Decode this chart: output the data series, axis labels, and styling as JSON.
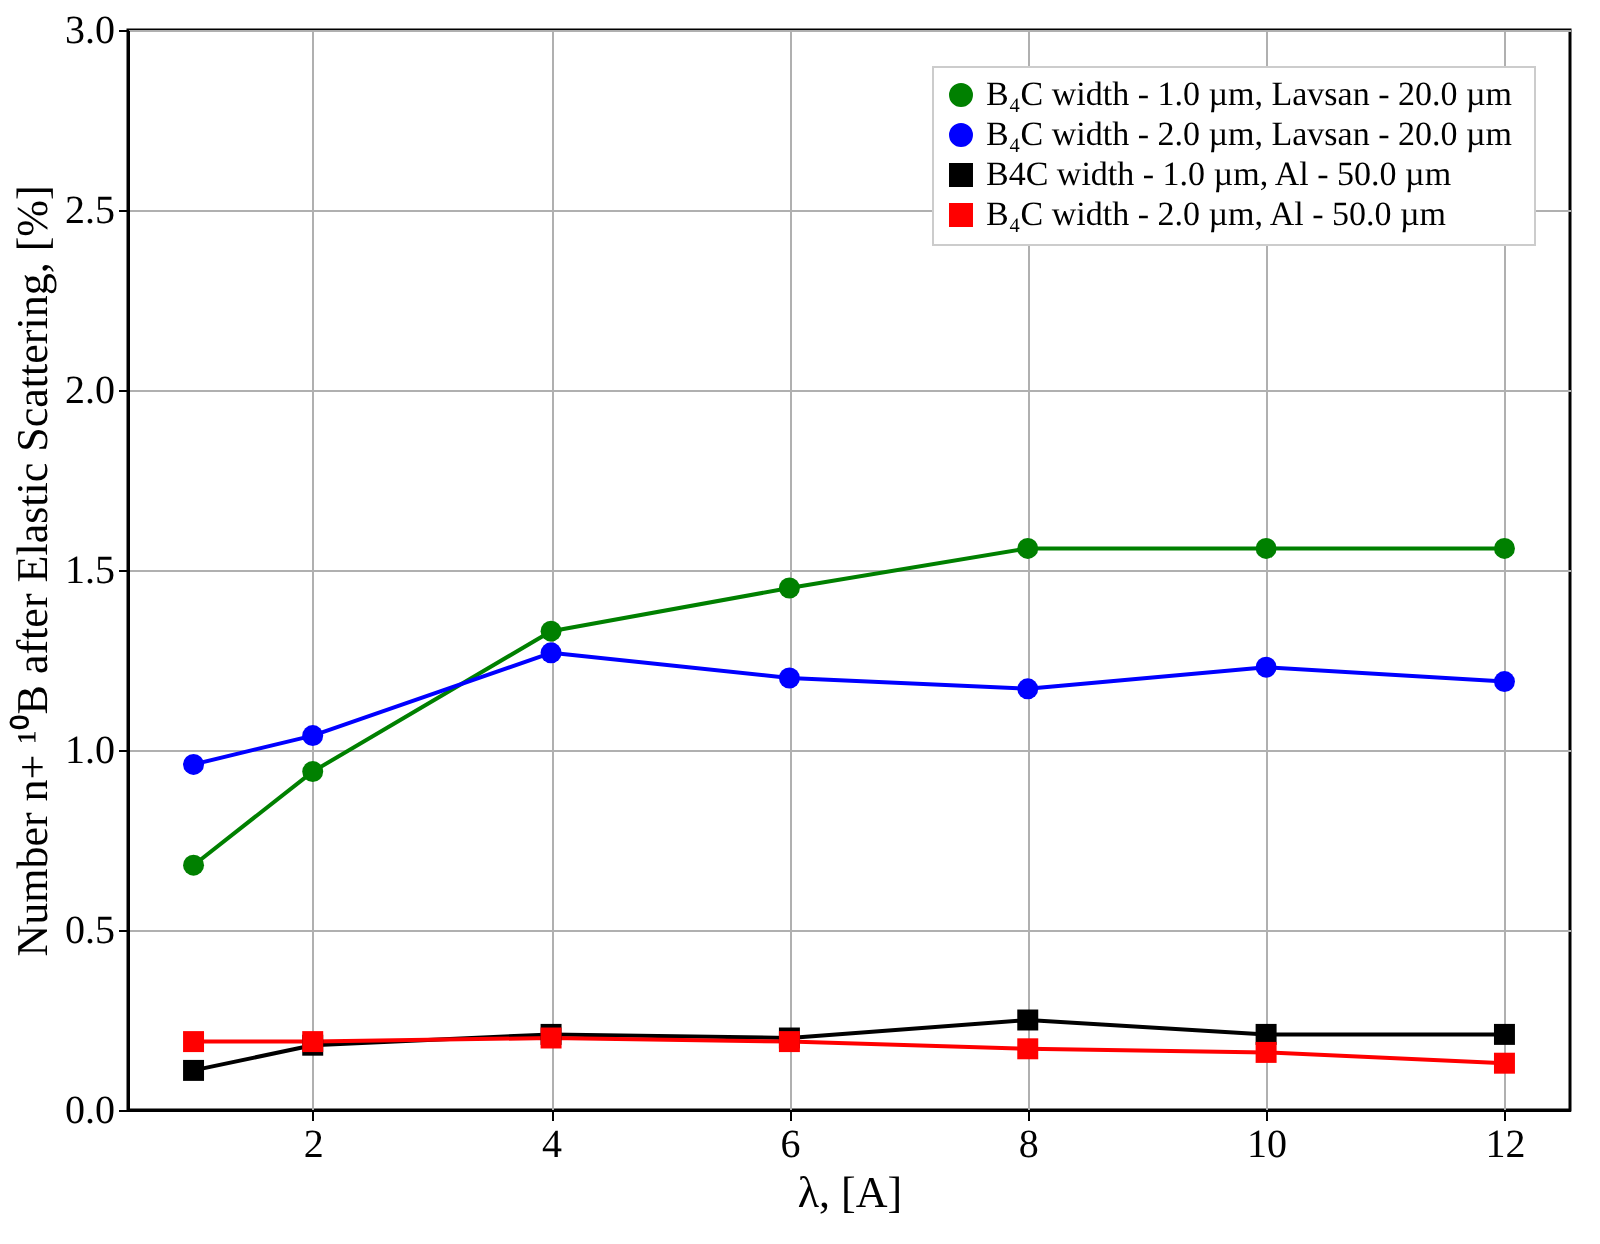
{
  "chart_data": {
    "type": "line",
    "xlabel": "λ, [A]",
    "ylabel": "Number n+ ¹⁰B after Elastic Scattering, [%]",
    "x": [
      1,
      2,
      4,
      6,
      8,
      10,
      12
    ],
    "series": [
      {
        "name": "B₄C width - 1.0 µm,  Lavsan - 20.0 µm",
        "color": "#008000",
        "marker": "circle",
        "values": [
          0.68,
          0.94,
          1.33,
          1.45,
          1.56,
          1.56,
          1.56
        ]
      },
      {
        "name": "B₄C width - 2.0 µm,  Lavsan - 20.0 µm",
        "color": "#0000ff",
        "marker": "circle",
        "values": [
          0.96,
          1.04,
          1.27,
          1.2,
          1.17,
          1.23,
          1.19
        ]
      },
      {
        "name": "B4C width - 1.0 µm,  Al - 50.0 µm",
        "color": "#000000",
        "marker": "square",
        "values": [
          0.11,
          0.18,
          0.21,
          0.2,
          0.25,
          0.21,
          0.21
        ]
      },
      {
        "name": "B₄C width - 2.0 µm,  Al - 50.0 µm",
        "color": "#ff0000",
        "marker": "square",
        "values": [
          0.19,
          0.19,
          0.2,
          0.19,
          0.17,
          0.16,
          0.13
        ]
      }
    ],
    "xlim": [
      0.45,
      12.55
    ],
    "xticks": [
      2,
      4,
      6,
      8,
      10,
      12
    ],
    "ylim": [
      0,
      3
    ],
    "yticks": [
      {
        "value": 0,
        "label": "0.0"
      },
      0.5,
      {
        "value": 1,
        "label": "1.0"
      },
      1.5,
      {
        "value": 2,
        "label": "2.0"
      },
      2.5,
      {
        "value": 3,
        "label": "3.0"
      }
    ],
    "grid": true,
    "legend": "top right",
    "line_style": "solid"
  }
}
